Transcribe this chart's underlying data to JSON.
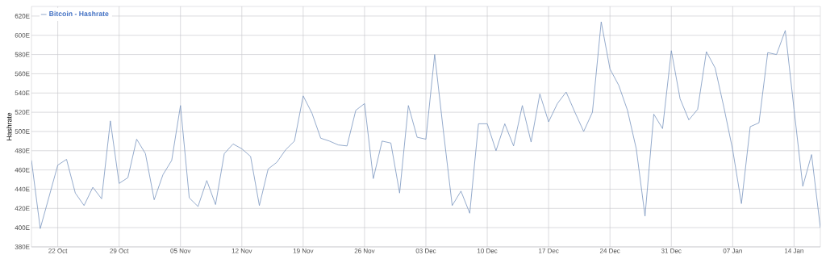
{
  "chart_data": {
    "type": "line",
    "ylabel": "Hashrate",
    "categories": [
      null,
      null,
      null,
      "22 Oct",
      null,
      null,
      null,
      null,
      null,
      null,
      "29 Oct",
      null,
      null,
      null,
      null,
      null,
      null,
      "05 Nov",
      null,
      null,
      null,
      null,
      null,
      null,
      "12 Nov",
      null,
      null,
      null,
      null,
      null,
      null,
      "19 Nov",
      null,
      null,
      null,
      null,
      null,
      null,
      "26 Nov",
      null,
      null,
      null,
      null,
      null,
      null,
      "03 Dec",
      null,
      null,
      null,
      null,
      null,
      null,
      "10 Dec",
      null,
      null,
      null,
      null,
      null,
      null,
      "17 Dec",
      null,
      null,
      null,
      null,
      null,
      null,
      "24 Dec",
      null,
      null,
      null,
      null,
      null,
      null,
      "31 Dec",
      null,
      null,
      null,
      null,
      null,
      null,
      "07 Jan",
      null,
      null,
      null,
      null,
      null,
      null,
      "14 Jan",
      null,
      null,
      null
    ],
    "series": [
      {
        "name": "Bitcoin - Hashrate",
        "color": "#7a96bf",
        "values": [
          470,
          399,
          432,
          465,
          471,
          436,
          423,
          442,
          430,
          511,
          446,
          452,
          492,
          477,
          429,
          455,
          470,
          527,
          431,
          422,
          449,
          424,
          477,
          487,
          482,
          474,
          423,
          461,
          468,
          481,
          490,
          537,
          519,
          493,
          490,
          486,
          485,
          522,
          529,
          451,
          490,
          488,
          436,
          527,
          494,
          492,
          580,
          500,
          423,
          438,
          415,
          508,
          508,
          480,
          508,
          485,
          527,
          489,
          539,
          510,
          529,
          541,
          520,
          500,
          520,
          614,
          565,
          548,
          522,
          482,
          412,
          518,
          503,
          584,
          534,
          512,
          523,
          583,
          566,
          525,
          481,
          425,
          505,
          509,
          582,
          580,
          605,
          523,
          443,
          476,
          400
        ]
      }
    ],
    "ylim": [
      380,
      630
    ],
    "yticks": [
      {
        "value": 380,
        "label": "380E"
      },
      {
        "value": 400,
        "label": "400E"
      },
      {
        "value": 420,
        "label": "420E"
      },
      {
        "value": 440,
        "label": "440E"
      },
      {
        "value": 460,
        "label": "460E"
      },
      {
        "value": 480,
        "label": "480E"
      },
      {
        "value": 500,
        "label": "500E"
      },
      {
        "value": 520,
        "label": "520E"
      },
      {
        "value": 540,
        "label": "540E"
      },
      {
        "value": 560,
        "label": "560E"
      },
      {
        "value": 580,
        "label": "580E"
      },
      {
        "value": 600,
        "label": "600E"
      },
      {
        "value": 620,
        "label": "620E"
      }
    ],
    "grid": true,
    "legend": "top left",
    "marker": "none",
    "line_style": "solid"
  }
}
